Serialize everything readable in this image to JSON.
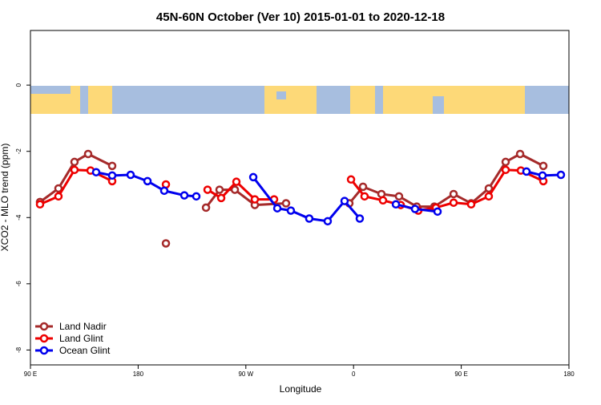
{
  "chart_data": {
    "type": "line",
    "title": "45N-60N October (Ver 10)   2015-01-01 to 2020-12-18",
    "x_label": "Longitude",
    "y_label": "XCO2 - MLO trend (ppm)",
    "xlim": [
      90,
      540
    ],
    "ylim": [
      -8.45,
      1.65
    ],
    "xticks": [
      {
        "value": 90,
        "label": "90 E"
      },
      {
        "value": 180,
        "label": "180"
      },
      {
        "value": 270,
        "label": "90 W"
      },
      {
        "value": 360,
        "label": "0"
      },
      {
        "value": 450,
        "label": "90 E"
      },
      {
        "value": 540,
        "label": "180"
      }
    ],
    "yticks": [
      0,
      -2,
      -4,
      -6,
      -8
    ],
    "legend": "bottom-left",
    "series": [
      {
        "name": "Land Nadir",
        "color": "#a52a2a",
        "x": [
          98.0,
          113.4,
          126.8,
          138.2,
          158.3,
          null,
          203.2,
          null,
          236.7,
          248.0,
          260.8,
          277.5,
          303.6,
          null,
          356.5,
          367.9,
          383.3,
          398.0,
          412.8,
          427.5,
          443.6,
          458.3,
          473.0,
          487.1,
          499.2,
          518.6
        ],
        "values": [
          -3.53,
          -3.12,
          -2.32,
          -2.08,
          -2.44,
          null,
          -4.78,
          null,
          -3.7,
          -3.16,
          -3.16,
          -3.62,
          -3.57,
          null,
          -3.57,
          -3.07,
          -3.29,
          -3.36,
          -3.67,
          -3.67,
          -3.29,
          -3.57,
          -3.12,
          -2.32,
          -2.08,
          -2.44
        ]
      },
      {
        "name": "Land Glint",
        "color": "#ee0000",
        "x": [
          98.0,
          113.4,
          126.8,
          140.2,
          158.3,
          null,
          203.2,
          null,
          238.0,
          249.4,
          262.1,
          277.5,
          293.6,
          null,
          357.9,
          369.2,
          384.6,
          399.4,
          414.1,
          428.8,
          443.6,
          458.3,
          473.0,
          487.1,
          499.8,
          518.6
        ],
        "values": [
          -3.6,
          -3.36,
          -2.56,
          -2.58,
          -2.9,
          null,
          -3.0,
          null,
          -3.16,
          -3.41,
          -2.92,
          -3.45,
          -3.45,
          null,
          -2.85,
          -3.36,
          -3.48,
          -3.62,
          -3.79,
          -3.7,
          -3.55,
          -3.6,
          -3.36,
          -2.56,
          -2.58,
          -2.9
        ]
      },
      {
        "name": "Ocean Glint",
        "color": "#0000ee",
        "x": [
          144.9,
          158.3,
          173.7,
          187.8,
          201.8,
          218.6,
          228.6,
          null,
          276.2,
          296.3,
          307.6,
          323.0,
          338.4,
          352.5,
          365.2,
          null,
          395.4,
          411.4,
          430.2,
          null,
          504.5,
          517.9,
          533.3
        ],
        "values": [
          -2.63,
          -2.73,
          -2.71,
          -2.9,
          -3.19,
          -3.33,
          -3.36,
          null,
          -2.78,
          -3.72,
          -3.79,
          -4.03,
          -4.11,
          -3.5,
          -4.03,
          null,
          -3.6,
          -3.74,
          -3.82,
          null,
          -2.61,
          -2.73,
          -2.71
        ]
      }
    ]
  }
}
